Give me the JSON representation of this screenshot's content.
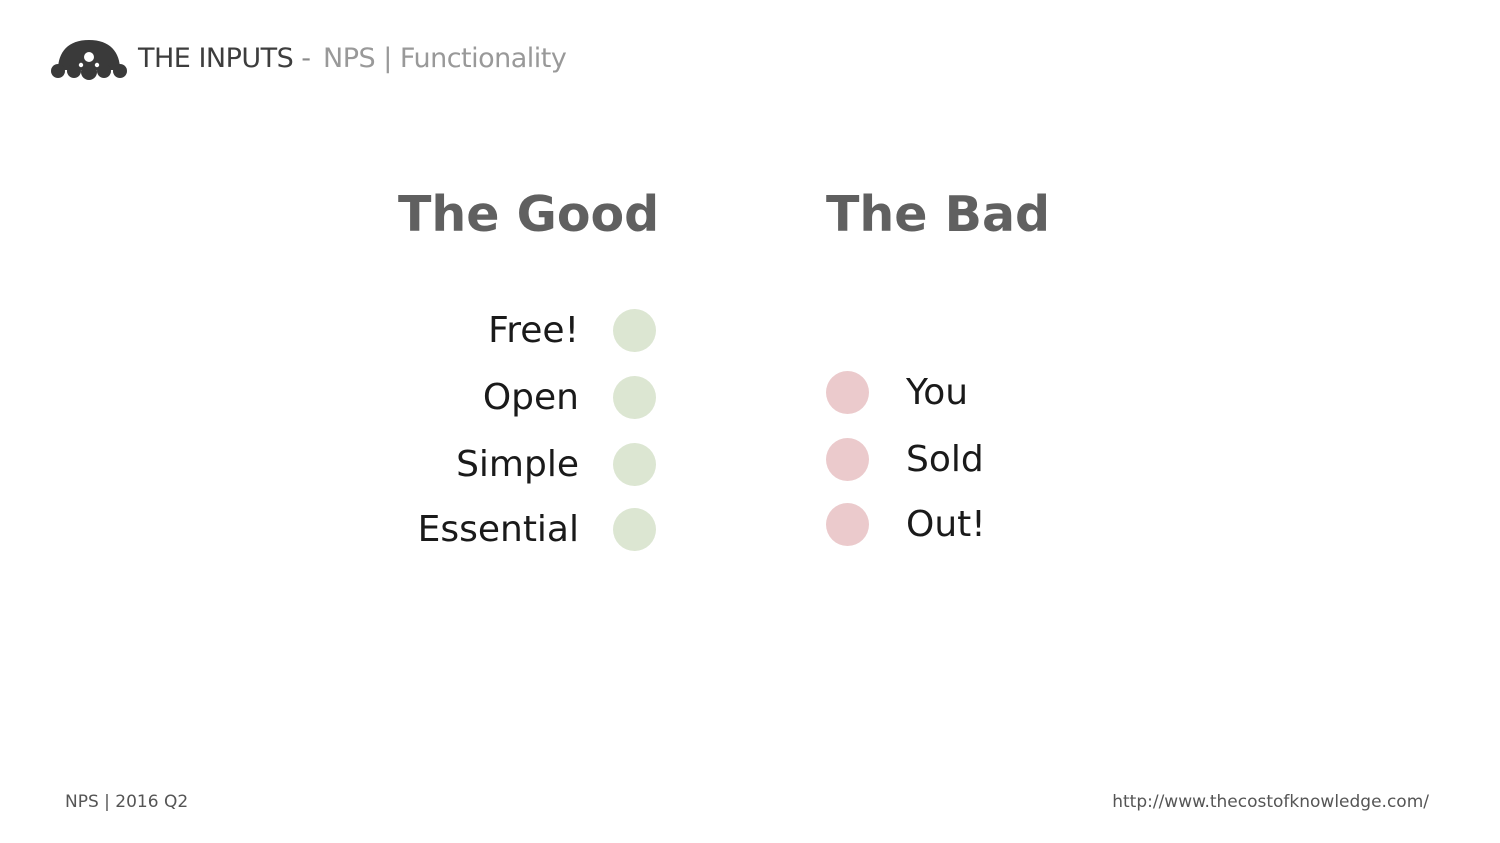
{
  "header": {
    "title": "THE INPUTS",
    "separator": "-",
    "subtitle": "NPS | Functionality",
    "logo_icon": "mendeley-molecule-logo"
  },
  "good": {
    "heading": "The Good",
    "color": "#dce6d2",
    "items": [
      "Free!",
      "Open",
      "Simple",
      "Essential"
    ]
  },
  "bad": {
    "heading": "The Bad",
    "color": "#ebcacc",
    "items": [
      "You",
      "Sold",
      "Out!"
    ]
  },
  "footer": {
    "left": "NPS | 2016 Q2",
    "right": "http://www.thecostofknowledge.com/"
  }
}
